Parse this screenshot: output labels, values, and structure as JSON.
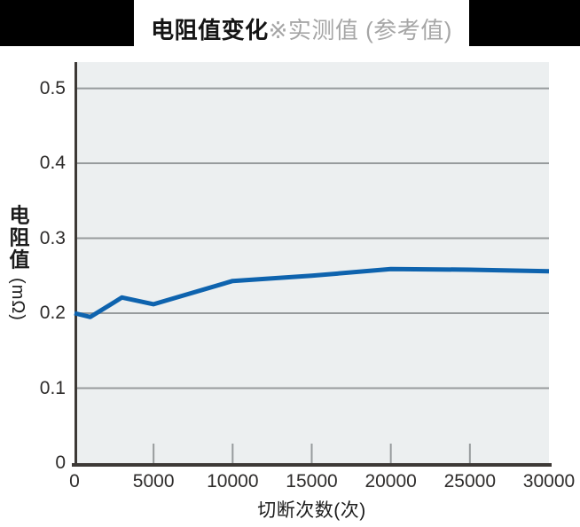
{
  "chart_data": {
    "type": "line",
    "title": "电阻值变化",
    "title_note": "※实测值 (参考值)",
    "xlabel": "切断次数(次)",
    "ylabel": "电阻值",
    "ylabel_unit": "(mΩ)",
    "x": [
      0,
      1000,
      3000,
      5000,
      10000,
      15000,
      20000,
      25000,
      30000
    ],
    "values": [
      0.2,
      0.195,
      0.221,
      0.212,
      0.243,
      0.25,
      0.259,
      0.258,
      0.256
    ],
    "x_tick_values": [
      0,
      5000,
      10000,
      15000,
      20000,
      25000,
      30000
    ],
    "x_tick_labels": [
      "0",
      "5000",
      "10000",
      "15000",
      "20000",
      "25000",
      "30000"
    ],
    "y_tick_values": [
      0,
      0.1,
      0.2,
      0.3,
      0.4,
      0.5
    ],
    "y_tick_labels": [
      "0",
      "0.1",
      "0.2",
      "0.3",
      "0.4",
      "0.5"
    ],
    "xlim": [
      0,
      30000
    ],
    "ylim": [
      0,
      0.535
    ],
    "grid": true,
    "legend": "none",
    "colors": {
      "line": "#0E63AE",
      "plot_bg": "#ECEFF0",
      "grid": "#979B9D",
      "axis": "#3D3936",
      "tick_label": "#2E2C2B",
      "header_bar": "#000000",
      "title_main": "#151515",
      "title_note": "#A6A6A6"
    }
  }
}
